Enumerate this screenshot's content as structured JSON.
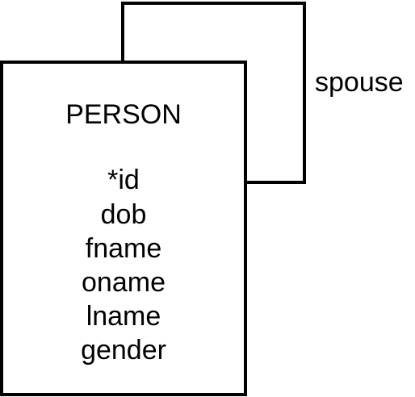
{
  "diagram": {
    "entity": {
      "name": "PERSON",
      "attributes": [
        "*id",
        "dob",
        "fname",
        "oname",
        "lname",
        "gender"
      ]
    },
    "relationship": {
      "label": "spouse"
    },
    "colors": {
      "stroke": "#000000",
      "fill": "#ffffff",
      "text": "#000000"
    }
  }
}
